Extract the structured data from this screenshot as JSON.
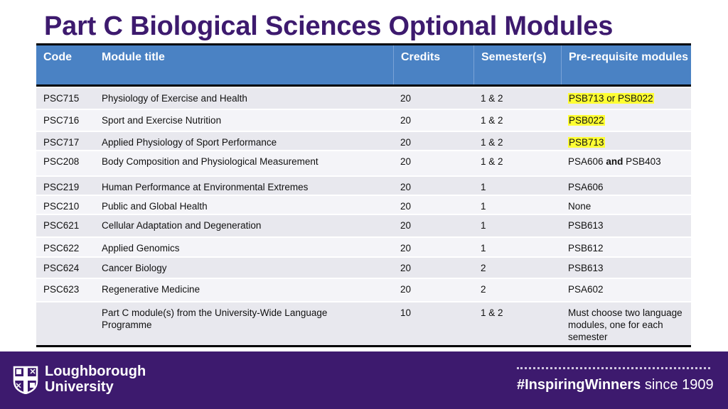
{
  "title": "Part C Biological Sciences Optional Modules",
  "table": {
    "headers": [
      "Code",
      "Module title",
      "Credits",
      "Semester(s)",
      "Pre-requisite modules"
    ],
    "rows": [
      {
        "code": "PSC715",
        "title": "Physiology of Exercise and Health",
        "credits": "20",
        "semesters": "1 & 2",
        "prereq": "PSB713 or PSB022"
      },
      {
        "code": "PSC716",
        "title": "Sport and Exercise Nutrition",
        "credits": "20",
        "semesters": "1 & 2",
        "prereq": "PSB022"
      },
      {
        "code": "PSC717",
        "title": "Applied Physiology of Sport Performance",
        "credits": "20",
        "semesters": "1 & 2",
        "prereq": "PSB713"
      },
      {
        "code": "PSC208",
        "title": "Body Composition and Physiological Measurement",
        "credits": "20",
        "semesters": "1 & 2",
        "prereq_a": "PSA606",
        "prereq_and": "and",
        "prereq_b": "PSB403"
      },
      {
        "code": "PSC219",
        "title": "Human Performance at Environmental Extremes",
        "credits": "20",
        "semesters": "1",
        "prereq": "PSA606"
      },
      {
        "code": "PSC210",
        "title": "Public and Global Health",
        "credits": "20",
        "semesters": "1",
        "prereq": "None"
      },
      {
        "code": "PSC621",
        "title": "Cellular Adaptation and Degeneration",
        "credits": "20",
        "semesters": "1",
        "prereq": "PSB613"
      },
      {
        "code": "PSC622",
        "title": "Applied Genomics",
        "credits": "20",
        "semesters": "1",
        "prereq": "PSB612"
      },
      {
        "code": "PSC624",
        "title": "Cancer Biology",
        "credits": "20",
        "semesters": "2",
        "prereq": "PSB613"
      },
      {
        "code": "PSC623",
        "title": "Regenerative Medicine",
        "credits": "20",
        "semesters": "2",
        "prereq": "PSA602"
      },
      {
        "code": "",
        "title": "Part C module(s) from the University-Wide Language Programme",
        "credits": "10",
        "semesters": "1 & 2",
        "prereq": "Must choose two language modules, one for each semester"
      }
    ]
  },
  "footer": {
    "university_line1": "Loughborough",
    "university_line2": "University",
    "tagline_bold": "#InspiringWinners",
    "tagline_rest": " since 1909"
  },
  "colors": {
    "title_purple": "#3d1a6e",
    "header_blue": "#4a82c4",
    "highlight_yellow": "#ffff33",
    "footer_purple": "#3d1a6e"
  }
}
